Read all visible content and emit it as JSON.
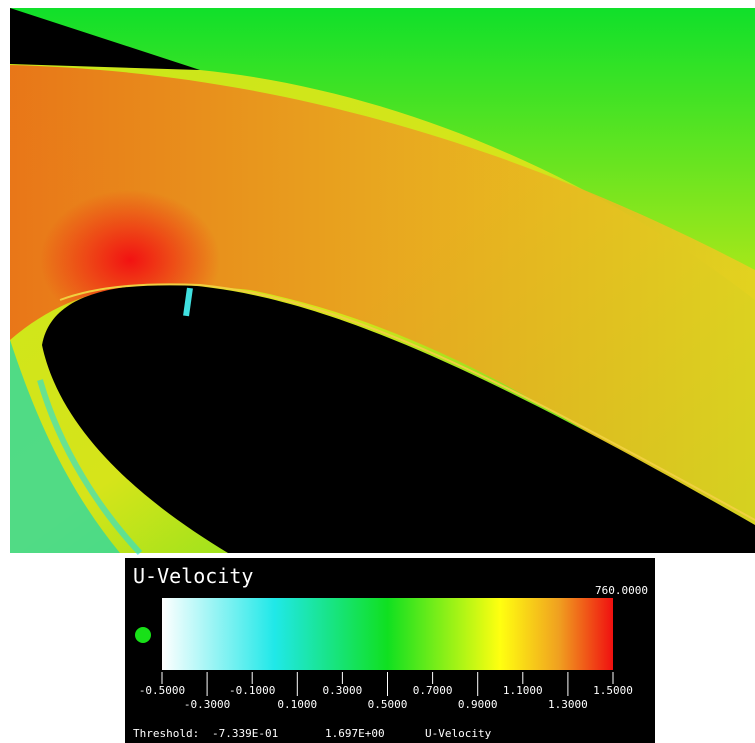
{
  "legend": {
    "title": "U-Velocity",
    "max_label": "760.0000",
    "ticks": [
      {
        "value": -0.5,
        "label": "-0.5000"
      },
      {
        "value": -0.3,
        "label": "-0.3000"
      },
      {
        "value": -0.1,
        "label": "-0.1000"
      },
      {
        "value": 0.1,
        "label": "0.1000"
      },
      {
        "value": 0.3,
        "label": "0.3000"
      },
      {
        "value": 0.5,
        "label": "0.5000"
      },
      {
        "value": 0.7,
        "label": "0.7000"
      },
      {
        "value": 0.9,
        "label": "0.9000"
      },
      {
        "value": 1.1,
        "label": "1.1000"
      },
      {
        "value": 1.3,
        "label": "1.3000"
      },
      {
        "value": 1.5,
        "label": "1.5000"
      }
    ],
    "threshold": {
      "label": "Threshold:",
      "min": "-7.339E-01",
      "max": "1.697E+00",
      "variable": "U-Velocity"
    }
  }
}
